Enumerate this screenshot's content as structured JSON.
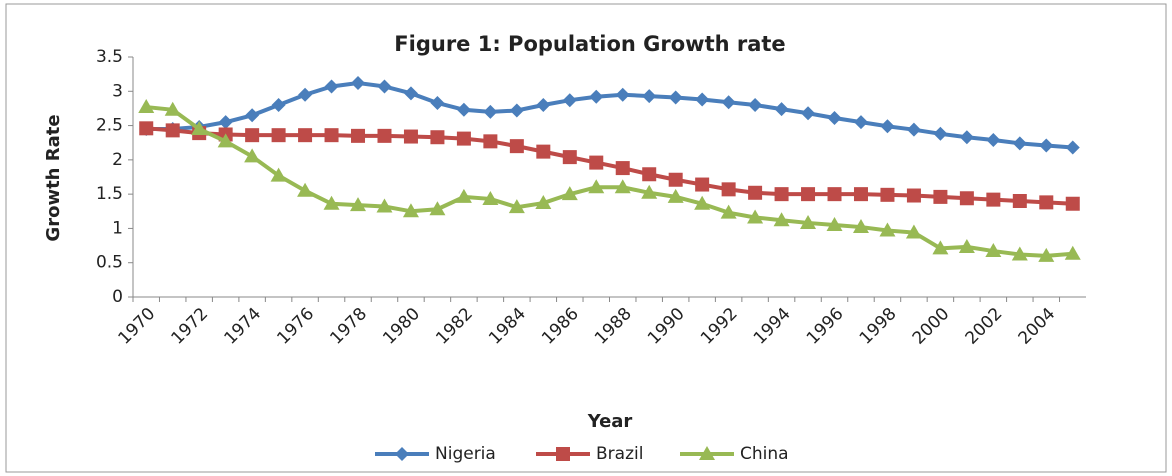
{
  "chart_data": {
    "type": "line",
    "title": "Figure 1: Population  Growth rate",
    "x_label": "Year",
    "y_label": "Growth Rate",
    "categories": [
      "1970",
      null,
      "1972",
      null,
      "1974",
      null,
      "1976",
      null,
      "1978",
      null,
      "1980",
      null,
      "1982",
      null,
      "1984",
      null,
      "1986",
      null,
      "1988",
      null,
      "1990",
      null,
      "1992",
      null,
      "1994",
      null,
      "1996",
      null,
      "1998",
      null,
      "2000",
      null,
      "2002",
      null,
      "2004",
      null
    ],
    "series": [
      {
        "name": "Nigeria",
        "color": "#4a7ebb",
        "marker": "diamond",
        "values": [
          2.45,
          2.45,
          2.48,
          2.55,
          2.65,
          2.8,
          2.95,
          3.07,
          3.12,
          3.07,
          2.97,
          2.83,
          2.73,
          2.7,
          2.72,
          2.8,
          2.87,
          2.92,
          2.95,
          2.93,
          2.91,
          2.88,
          2.84,
          2.8,
          2.74,
          2.68,
          2.61,
          2.55,
          2.49,
          2.44,
          2.38,
          2.33,
          2.29,
          2.24,
          2.21,
          2.18
        ]
      },
      {
        "name": "Brazil",
        "color": "#be4b48",
        "marker": "square",
        "values": [
          2.46,
          2.43,
          2.39,
          2.37,
          2.36,
          2.36,
          2.36,
          2.36,
          2.35,
          2.35,
          2.34,
          2.33,
          2.31,
          2.27,
          2.2,
          2.12,
          2.04,
          1.96,
          1.88,
          1.79,
          1.71,
          1.64,
          1.57,
          1.52,
          1.5,
          1.5,
          1.5,
          1.5,
          1.49,
          1.48,
          1.46,
          1.44,
          1.42,
          1.4,
          1.38,
          1.36
        ]
      },
      {
        "name": "China",
        "color": "#98b954",
        "marker": "triangle",
        "values": [
          2.77,
          2.73,
          2.45,
          2.27,
          2.05,
          1.77,
          1.55,
          1.36,
          1.34,
          1.32,
          1.25,
          1.28,
          1.46,
          1.43,
          1.31,
          1.37,
          1.5,
          1.6,
          1.6,
          1.52,
          1.46,
          1.36,
          1.23,
          1.16,
          1.12,
          1.08,
          1.05,
          1.02,
          0.97,
          0.94,
          0.71,
          0.73,
          0.67,
          0.62,
          0.6,
          0.63
        ]
      }
    ],
    "ylim": [
      0,
      3.5
    ],
    "yticks": [
      0,
      0.5,
      1,
      1.5,
      2,
      2.5,
      3,
      3.5
    ],
    "grid": false,
    "legend": "bottom"
  }
}
